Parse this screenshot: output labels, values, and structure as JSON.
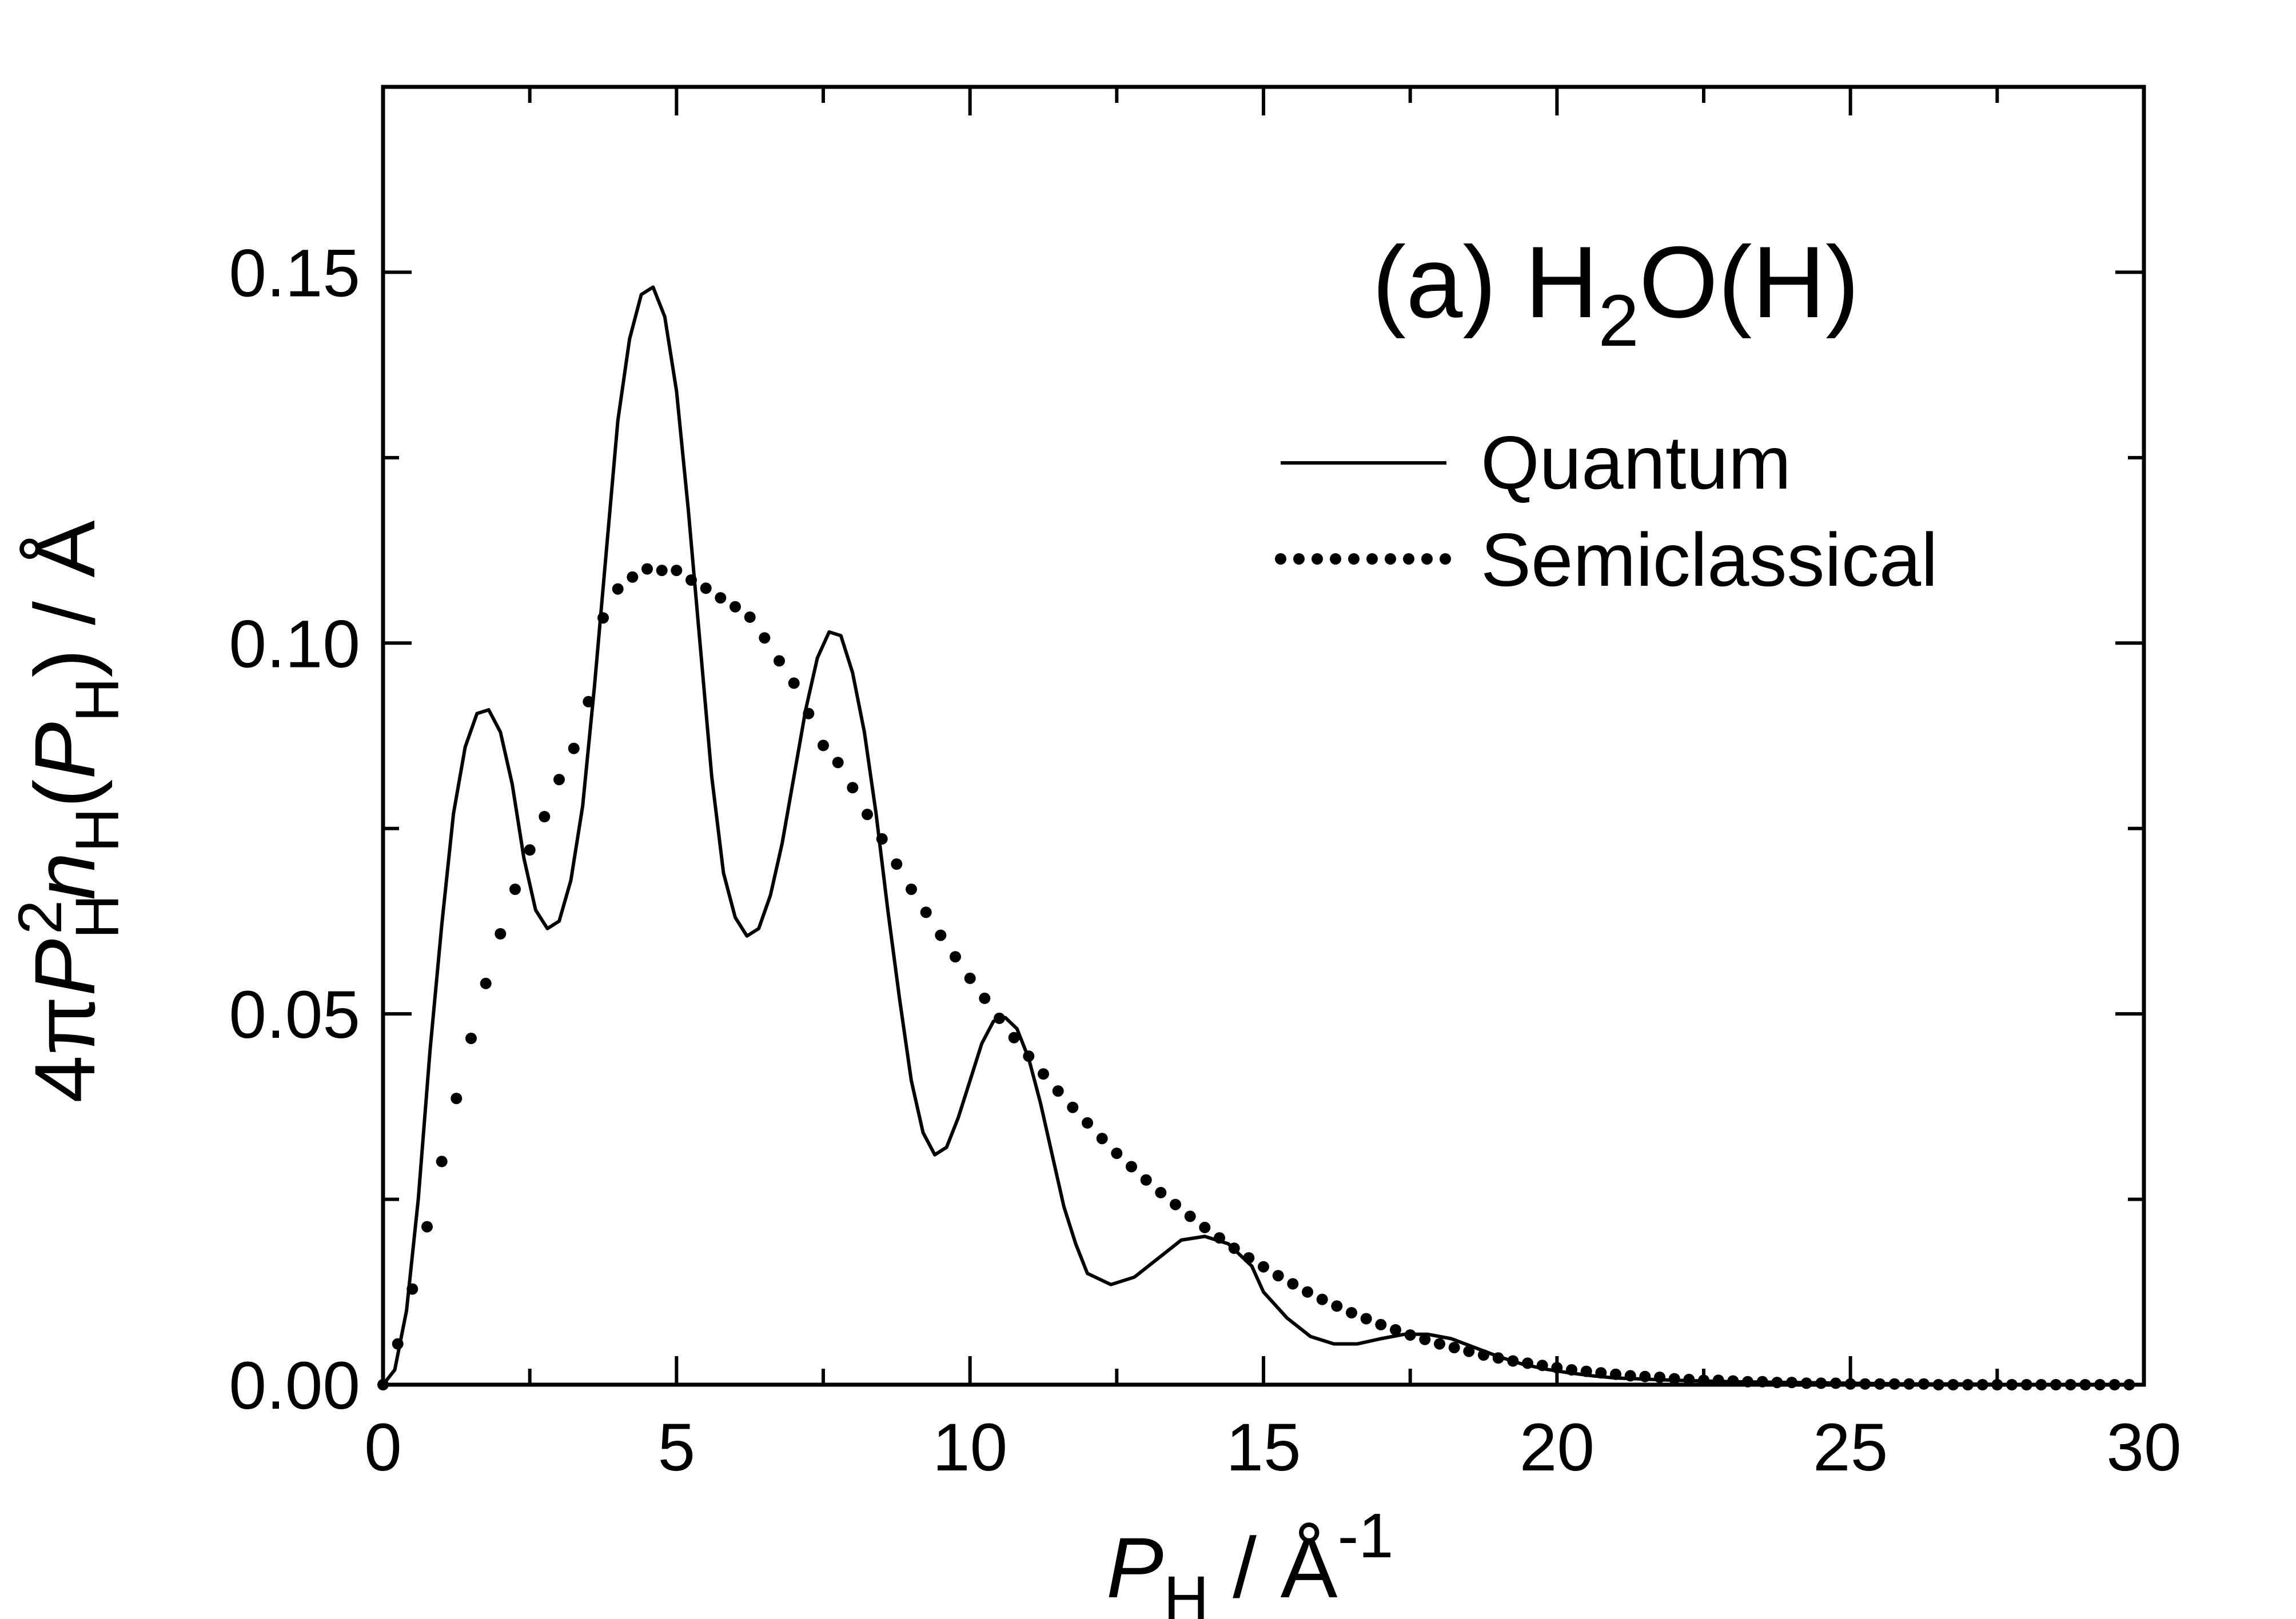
{
  "chart_data": {
    "type": "line",
    "panel_label": {
      "prefix": "(a) H",
      "sub": "2",
      "suffix": "O(H)"
    },
    "xlabel": {
      "main": "P",
      "sub": "H",
      "rest": " / Å",
      "sup": "-1"
    },
    "ylabel": {
      "prefix": "4π",
      "p": "P",
      "p_sub": "H",
      "p_sup": "2",
      "n": "n",
      "n_sub": "H",
      "arg_open": "(",
      "arg_p": "P",
      "arg_sub": "H",
      "arg_close": ") / Å"
    },
    "xlim": [
      0,
      30
    ],
    "ylim": [
      0,
      0.175
    ],
    "xticks": [
      0,
      5,
      10,
      15,
      20,
      25,
      30
    ],
    "xtick_labels": [
      "0",
      "5",
      "10",
      "15",
      "20",
      "25",
      "30"
    ],
    "yticks": [
      0.0,
      0.05,
      0.1,
      0.15
    ],
    "ytick_labels": [
      "0.00",
      "0.05",
      "0.10",
      "0.15"
    ],
    "x_minor_step": 2.5,
    "y_minor_step": 0.025,
    "grid": false,
    "legend_position": "top-right",
    "series": [
      {
        "name": "Quantum",
        "style": "solid",
        "color": "#000000",
        "x": [
          0,
          0.2,
          0.4,
          0.6,
          0.8,
          1.0,
          1.2,
          1.4,
          1.6,
          1.8,
          2.0,
          2.2,
          2.4,
          2.6,
          2.8,
          3.0,
          3.2,
          3.4,
          3.6,
          3.8,
          4.0,
          4.2,
          4.4,
          4.6,
          4.8,
          5.0,
          5.2,
          5.4,
          5.6,
          5.8,
          6.0,
          6.2,
          6.4,
          6.6,
          6.8,
          7.0,
          7.2,
          7.4,
          7.6,
          7.8,
          8.0,
          8.2,
          8.4,
          8.6,
          8.8,
          9.0,
          9.2,
          9.4,
          9.6,
          9.8,
          10.0,
          10.2,
          10.4,
          10.6,
          10.8,
          11.0,
          11.2,
          11.4,
          11.6,
          11.8,
          12.0,
          12.4,
          12.8,
          13.2,
          13.6,
          14.0,
          14.4,
          14.8,
          15.0,
          15.4,
          15.8,
          16.2,
          16.6,
          17.0,
          17.4,
          17.8,
          18.2,
          18.6,
          19.0,
          19.4,
          19.8,
          20.2,
          20.6,
          21.0,
          22.0,
          23.0,
          24.0,
          25.0,
          26.0,
          27.0,
          28.0,
          29.0,
          29.8
        ],
        "y": [
          0.0,
          0.002,
          0.01,
          0.025,
          0.045,
          0.062,
          0.077,
          0.086,
          0.0905,
          0.091,
          0.088,
          0.081,
          0.071,
          0.064,
          0.0615,
          0.0625,
          0.068,
          0.078,
          0.094,
          0.112,
          0.13,
          0.141,
          0.147,
          0.148,
          0.144,
          0.134,
          0.118,
          0.1,
          0.082,
          0.069,
          0.063,
          0.0605,
          0.0615,
          0.066,
          0.073,
          0.082,
          0.091,
          0.098,
          0.1015,
          0.101,
          0.096,
          0.088,
          0.077,
          0.064,
          0.052,
          0.041,
          0.034,
          0.031,
          0.032,
          0.036,
          0.041,
          0.046,
          0.049,
          0.0495,
          0.048,
          0.044,
          0.038,
          0.031,
          0.024,
          0.019,
          0.015,
          0.0135,
          0.0145,
          0.017,
          0.0195,
          0.02,
          0.019,
          0.016,
          0.0125,
          0.009,
          0.0065,
          0.0055,
          0.0055,
          0.0062,
          0.0068,
          0.0068,
          0.0062,
          0.005,
          0.0038,
          0.0028,
          0.0021,
          0.0016,
          0.0012,
          0.0009,
          0.0006,
          0.0004,
          0.0003,
          0.0002,
          0.0001,
          0.0001,
          0.0,
          0.0,
          0.0
        ]
      },
      {
        "name": "Semiclassical",
        "style": "dotted",
        "color": "#000000",
        "x": [
          0.0,
          0.25,
          0.5,
          0.75,
          1.0,
          1.25,
          1.5,
          1.75,
          2.0,
          2.25,
          2.5,
          2.75,
          3.0,
          3.25,
          3.5,
          3.75,
          4.0,
          4.25,
          4.5,
          4.75,
          5.0,
          5.25,
          5.5,
          5.75,
          6.0,
          6.25,
          6.5,
          6.75,
          7.0,
          7.25,
          7.5,
          7.75,
          8.0,
          8.25,
          8.5,
          8.75,
          9.0,
          9.25,
          9.5,
          9.75,
          10.0,
          10.25,
          10.5,
          10.75,
          11.0,
          11.25,
          11.5,
          11.75,
          12.0,
          12.25,
          12.5,
          12.75,
          13.0,
          13.25,
          13.5,
          13.75,
          14.0,
          14.25,
          14.5,
          14.75,
          15.0,
          15.25,
          15.5,
          15.75,
          16.0,
          16.25,
          16.5,
          16.75,
          17.0,
          17.25,
          17.5,
          17.75,
          18.0,
          18.25,
          18.5,
          18.75,
          19.0,
          19.25,
          19.5,
          19.75,
          20.0,
          20.25,
          20.5,
          20.75,
          21.0,
          21.25,
          21.5,
          21.75,
          22.0,
          22.25,
          22.5,
          22.75,
          23.0,
          23.25,
          23.5,
          23.75,
          24.0,
          24.25,
          24.5,
          24.75,
          25.0,
          25.25,
          25.5,
          25.75,
          26.0,
          26.25,
          26.5,
          26.75,
          27.0,
          27.25,
          27.5,
          27.75,
          28.0,
          28.25,
          28.5,
          28.75,
          29.0,
          29.25,
          29.5,
          29.75
        ],
        "y": [
          0.0,
          0.0055,
          0.0129,
          0.0213,
          0.0301,
          0.0386,
          0.0467,
          0.0541,
          0.0608,
          0.0668,
          0.0721,
          0.0766,
          0.0816,
          0.0858,
          0.0921,
          0.1034,
          0.1073,
          0.1089,
          0.11,
          0.1098,
          0.1098,
          0.1085,
          0.1074,
          0.1061,
          0.1049,
          0.1035,
          0.1007,
          0.0976,
          0.0946,
          0.0905,
          0.0862,
          0.0839,
          0.0805,
          0.0769,
          0.0736,
          0.0702,
          0.0668,
          0.0637,
          0.0606,
          0.0577,
          0.0548,
          0.0521,
          0.0494,
          0.0468,
          0.0443,
          0.0419,
          0.0396,
          0.0374,
          0.0353,
          0.0332,
          0.0312,
          0.0294,
          0.0276,
          0.0259,
          0.0243,
          0.0227,
          0.0212,
          0.0198,
          0.0184,
          0.0171,
          0.0159,
          0.0147,
          0.0136,
          0.0125,
          0.0115,
          0.0106,
          0.0097,
          0.0089,
          0.0081,
          0.0074,
          0.0067,
          0.0061,
          0.0055,
          0.005,
          0.0045,
          0.004,
          0.0036,
          0.0032,
          0.0029,
          0.0026,
          0.0023,
          0.002,
          0.0018,
          0.0016,
          0.0014,
          0.0012,
          0.0011,
          0.001,
          0.0008,
          0.0007,
          0.0006,
          0.0006,
          0.0005,
          0.0004,
          0.0004,
          0.0003,
          0.0003,
          0.0002,
          0.0002,
          0.0002,
          0.0001,
          0.0001,
          0.0001,
          0.0001,
          0.0001,
          0.0001,
          0.0,
          0.0,
          0.0,
          0.0,
          0.0,
          0.0,
          0.0,
          0.0,
          0.0,
          0.0,
          0.0,
          0.0,
          0.0,
          0.0
        ]
      }
    ]
  }
}
